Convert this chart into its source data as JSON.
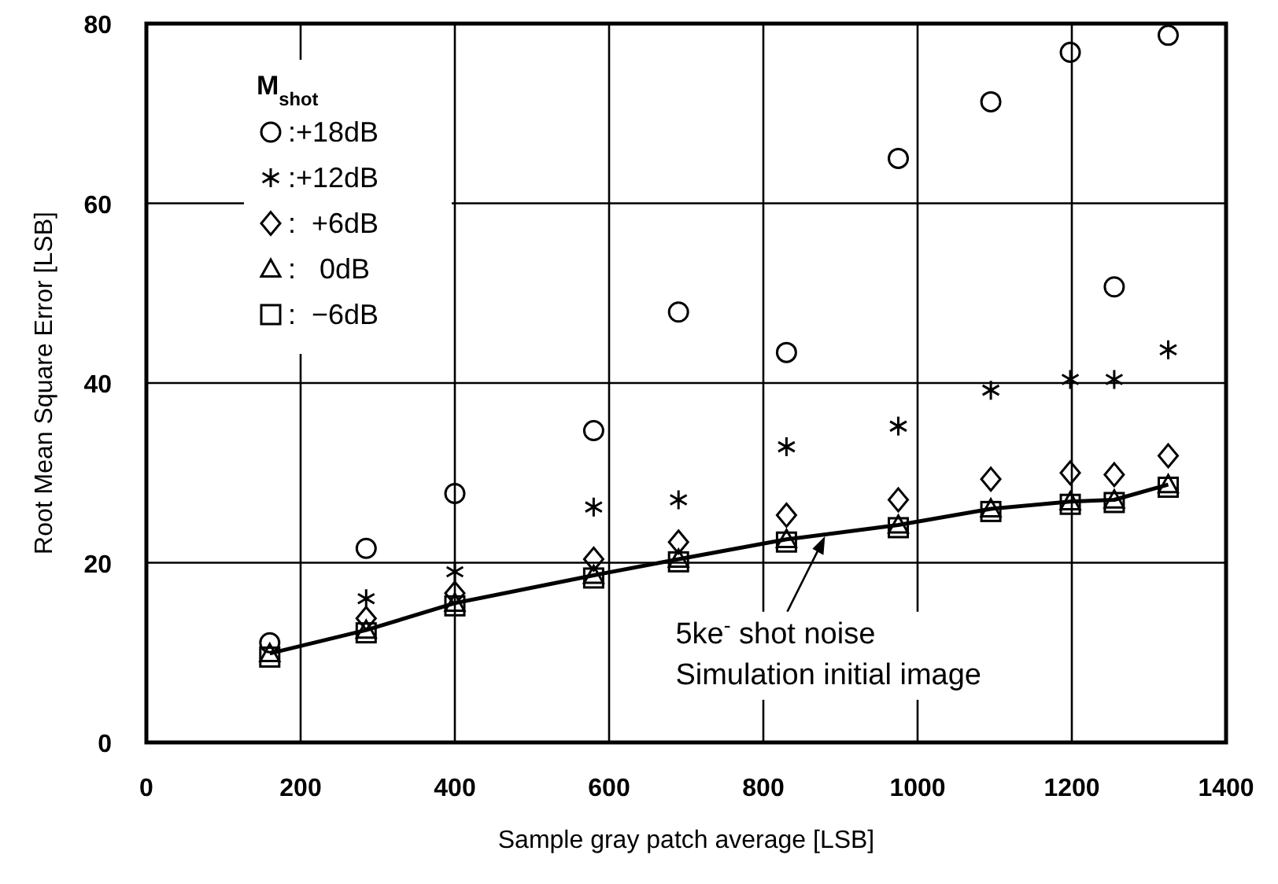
{
  "chart_data": {
    "type": "scatter",
    "xlabel": "Sample gray patch average [LSB]",
    "ylabel": "Root Mean Square Error [LSB]",
    "legend_title": "M$_{shot}$",
    "legend": "top left",
    "grid": true,
    "x": [
      160,
      285,
      400,
      580,
      690,
      830,
      975,
      1095,
      1198,
      1255,
      1325
    ],
    "xlim": [
      0,
      1400
    ],
    "xticks": [
      0,
      200,
      400,
      600,
      800,
      1000,
      1200,
      1400
    ],
    "ylim": [
      0,
      80
    ],
    "yticks": [
      0,
      20,
      40,
      60,
      80
    ],
    "series": [
      {
        "name": ":+18dB",
        "color": "#000000",
        "marker": "circle",
        "values": [
          11.1,
          21.6,
          27.7,
          34.7,
          47.9,
          43.4,
          65.0,
          71.3,
          76.8,
          50.7,
          78.7
        ]
      },
      {
        "name": ":+12dB",
        "color": "#000000",
        "marker": "cross",
        "values": [
          null,
          16.0,
          19.0,
          26.2,
          27.0,
          32.9,
          35.2,
          39.2,
          40.4,
          40.4,
          43.7
        ]
      },
      {
        "name": ":  +6dB",
        "color": "#000000",
        "marker": "diamond",
        "values": [
          null,
          13.8,
          16.6,
          20.4,
          22.3,
          25.3,
          27.0,
          29.3,
          30.0,
          29.8,
          31.9
        ]
      },
      {
        "name": ":   0dB",
        "color": "#000000",
        "marker": "triangle",
        "values": [
          9.9,
          12.5,
          15.5,
          18.6,
          20.4,
          22.6,
          24.2,
          26.0,
          26.8,
          27.0,
          28.7
        ]
      },
      {
        "name": ":  −6dB",
        "color": "#000000",
        "marker": "square",
        "values": [
          9.5,
          12.2,
          15.2,
          18.3,
          20.1,
          22.3,
          23.9,
          25.7,
          26.5,
          26.7,
          28.4
        ]
      },
      {
        "type": "line",
        "color": "#000000",
        "marker": "none",
        "line_style": "solid",
        "values": [
          9.9,
          12.5,
          15.5,
          18.6,
          20.4,
          22.6,
          24.2,
          26.0,
          26.8,
          27.0,
          28.7
        ]
      }
    ],
    "annotations": [
      {
        "text": "5ke$^{-}$ shot noise\nSimulation initial image",
        "x": 880,
        "y": 23.3
      }
    ]
  }
}
